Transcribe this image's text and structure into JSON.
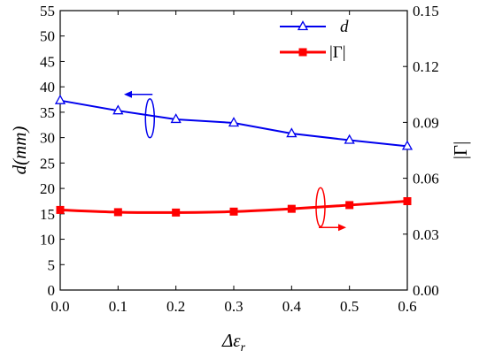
{
  "chart_data": {
    "type": "line",
    "x": [
      0.0,
      0.1,
      0.2,
      0.3,
      0.4,
      0.5,
      0.6
    ],
    "x_ticks": [
      "0.0",
      "0.1",
      "0.2",
      "0.3",
      "0.4",
      "0.5",
      "0.6"
    ],
    "xlim": [
      0.0,
      0.6
    ],
    "xlabel": "Δε",
    "xlabel_sub": "r",
    "ylabel_left": "d(mm)",
    "ylim_left": [
      0,
      55
    ],
    "y_ticks_left": [
      "0",
      "5",
      "10",
      "15",
      "20",
      "25",
      "30",
      "35",
      "40",
      "45",
      "50",
      "55"
    ],
    "ylabel_right": "|Γ|",
    "ylim_right": [
      0.0,
      0.15
    ],
    "y_ticks_right": [
      "0.00",
      "0.03",
      "0.06",
      "0.09",
      "0.12",
      "0.15"
    ],
    "grid": false,
    "legend_position": "top-right",
    "series": [
      {
        "name": "d",
        "axis": "left",
        "marker": "open-triangle",
        "color": "#0000ee",
        "values": [
          37.3,
          35.3,
          33.6,
          32.9,
          30.8,
          29.5,
          28.3
        ]
      },
      {
        "name": "|Γ|",
        "axis": "right",
        "marker": "filled-square",
        "color": "#ff0000",
        "values": [
          0.043,
          0.0418,
          0.0416,
          0.0421,
          0.0436,
          0.0456,
          0.0477
        ]
      }
    ]
  }
}
